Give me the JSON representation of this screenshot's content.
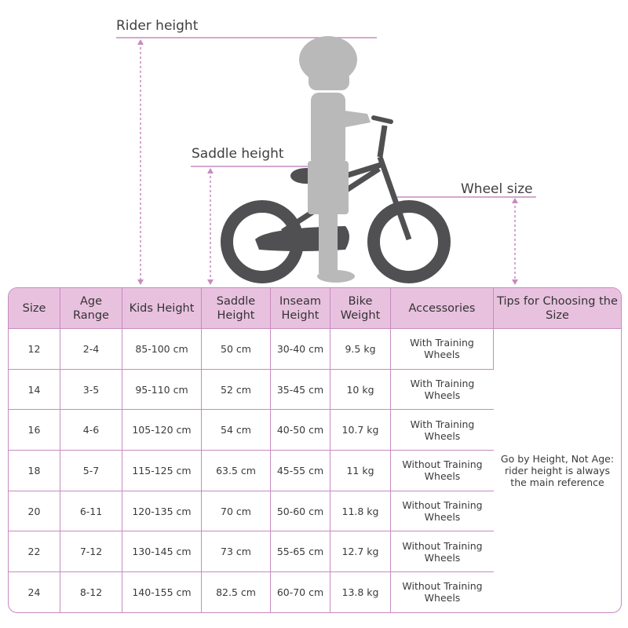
{
  "diagram": {
    "labels": {
      "rider_height": "Rider height",
      "saddle_height": "Saddle height",
      "wheel_size": "Wheel size"
    },
    "colors": {
      "accent": "#c78bbf",
      "header_bg": "#e8c1df",
      "bike": "#505052",
      "child": "#b9b9b9"
    }
  },
  "table": {
    "headers": [
      "Size",
      "Age Range",
      "Kids Height",
      "Saddle Height",
      "Inseam Height",
      "Bike Weight",
      "Accessories",
      "Tips for Choosing the Size"
    ],
    "rows": [
      [
        "12",
        "2-4",
        "85-100 cm",
        "50 cm",
        "30-40 cm",
        "9.5 kg",
        "With Training Wheels"
      ],
      [
        "14",
        "3-5",
        "95-110 cm",
        "52 cm",
        "35-45 cm",
        "10 kg",
        "With Training Wheels"
      ],
      [
        "16",
        "4-6",
        "105-120 cm",
        "54 cm",
        "40-50 cm",
        "10.7 kg",
        "With Training Wheels"
      ],
      [
        "18",
        "5-7",
        "115-125 cm",
        "63.5 cm",
        "45-55 cm",
        "11 kg",
        "Without Training Wheels"
      ],
      [
        "20",
        "6-11",
        "120-135 cm",
        "70 cm",
        "50-60 cm",
        "11.8 kg",
        "Without Training Wheels"
      ],
      [
        "22",
        "7-12",
        "130-145 cm",
        "73 cm",
        "55-65 cm",
        "12.7 kg",
        "Without Training Wheels"
      ],
      [
        "24",
        "8-12",
        "140-155 cm",
        "82.5 cm",
        "60-70 cm",
        "13.8 kg",
        "Without Training Wheels"
      ]
    ],
    "tip": "Go by Height, Not Age: rider height is always the main reference"
  }
}
